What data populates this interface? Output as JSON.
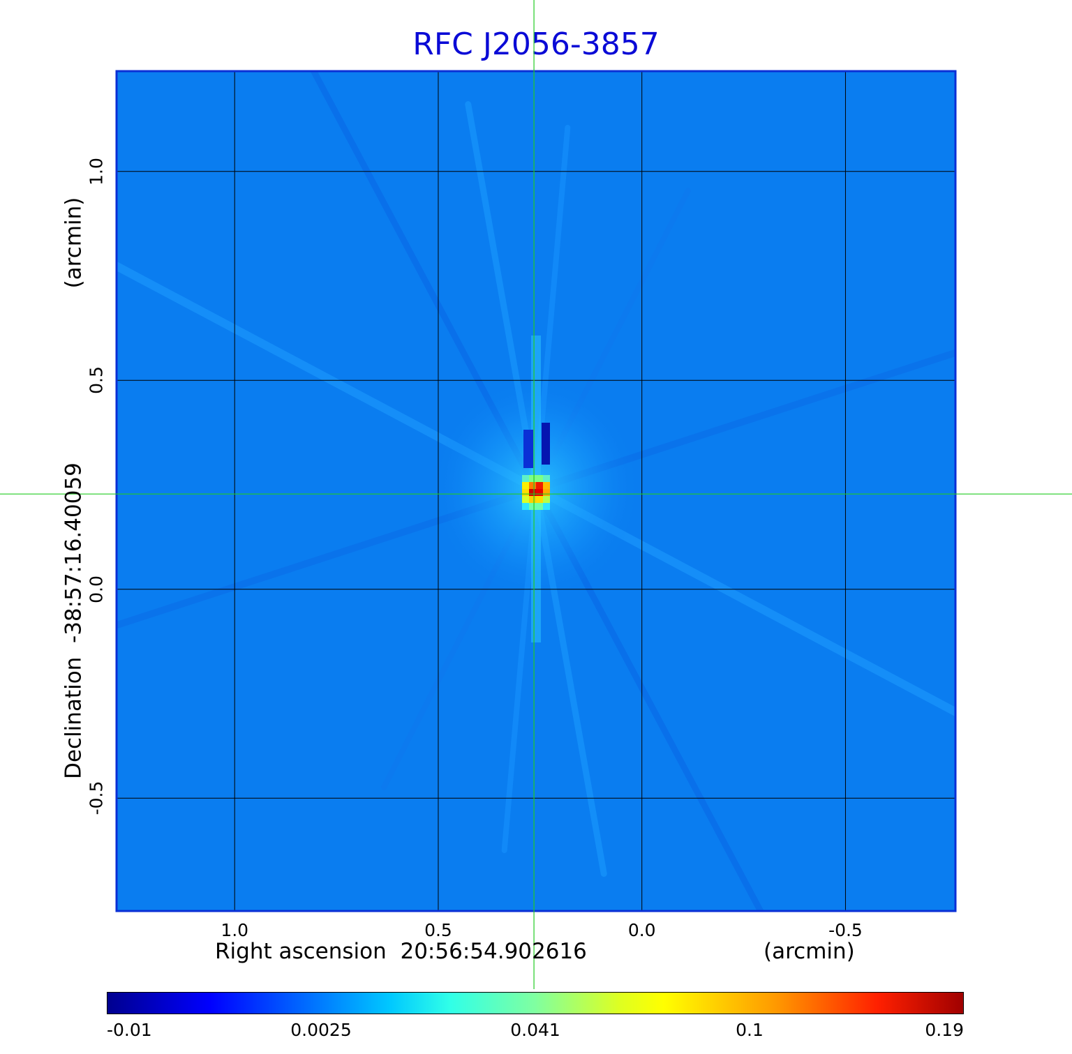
{
  "chart_data": {
    "type": "heatmap",
    "title": "RFC J2056-3857",
    "xlabel": "Right ascension  20:56:54.902616",
    "xunit": "(arcmin)",
    "ylabel": "Declination  -38:57:16.40059",
    "yunit": "(arcmin)",
    "x_ticks": [
      "1.0",
      "0.5",
      "0.0",
      "-0.5"
    ],
    "x_tick_values": [
      1.0,
      0.5,
      0.0,
      -0.5
    ],
    "y_ticks": [
      "1.0",
      "0.5",
      "0.0",
      "-0.5"
    ],
    "y_tick_values": [
      1.0,
      0.5,
      0.0,
      -0.5
    ],
    "xlim": [
      1.29,
      -0.77
    ],
    "ylim": [
      -0.77,
      1.24
    ],
    "grid": true,
    "peak": {
      "x": 0.26,
      "y": 0.24,
      "value": 0.19
    },
    "crosshair": {
      "x": 0.265,
      "y": 0.228,
      "color": "#22cc22"
    },
    "colorbar": {
      "ticks": [
        "-0.01",
        "0.0025",
        "0.041",
        "0.1",
        "0.19"
      ],
      "colormap": "jet"
    },
    "colors": {
      "background": "#0a7df0",
      "frame": "#0a2fd6",
      "title": "#0a0ad6"
    }
  }
}
